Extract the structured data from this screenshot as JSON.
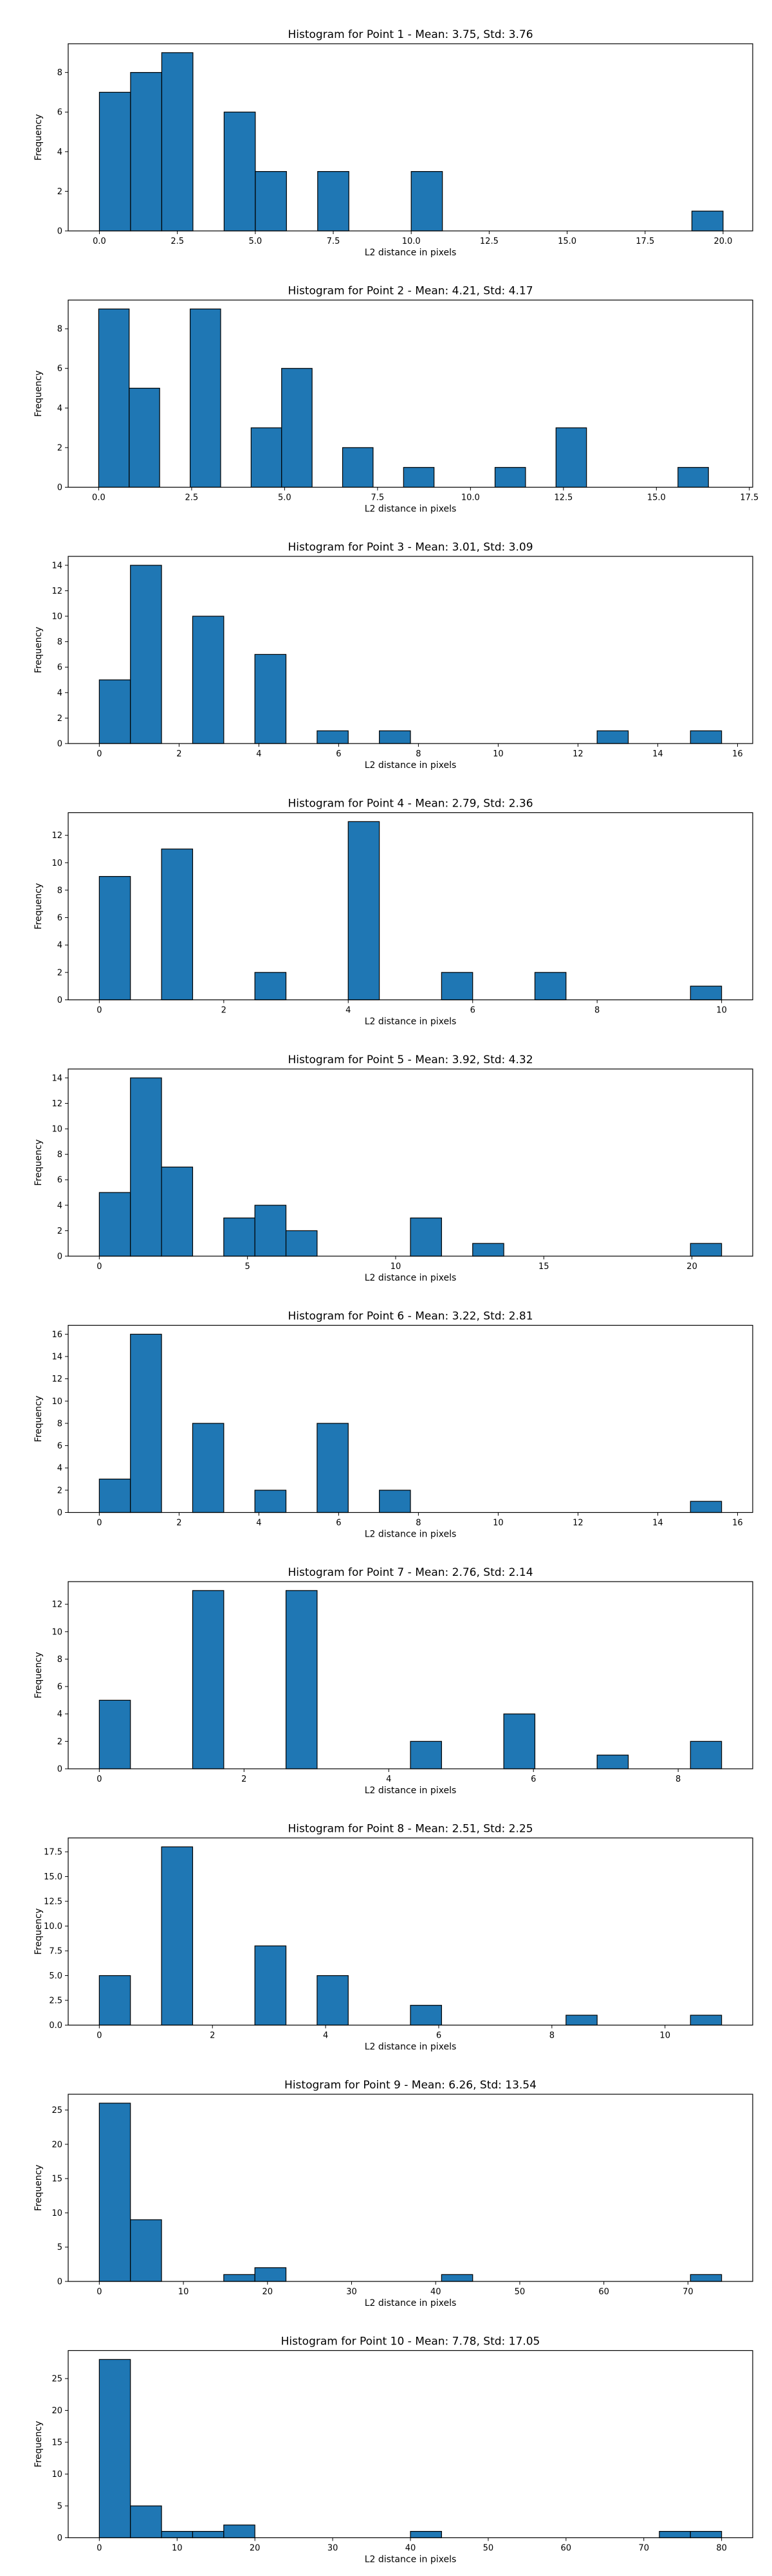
{
  "colors": {
    "bar": "#1f77b4",
    "edge": "#000000",
    "axis": "#000000",
    "background": "#ffffff"
  },
  "chart_data": [
    {
      "type": "bar",
      "title": "Histogram for Point 1 - Mean: 3.75, Std: 3.76",
      "xlabel": "L2 distance in pixels",
      "ylabel": "Frequency",
      "xlim": [
        -1.0,
        20.95
      ],
      "ylim": [
        0,
        9.45
      ],
      "xticks": [
        0.0,
        2.5,
        5.0,
        7.5,
        10.0,
        12.5,
        15.0,
        17.5,
        20.0
      ],
      "xtick_labels": [
        "0.0",
        "2.5",
        "5.0",
        "7.5",
        "10.0",
        "12.5",
        "15.0",
        "17.5",
        "20.0"
      ],
      "yticks": [
        0,
        2,
        4,
        6,
        8
      ],
      "ytick_labels": [
        "0",
        "2",
        "4",
        "6",
        "8"
      ],
      "bins": [
        [
          0.0,
          1.0,
          7
        ],
        [
          1.0,
          2.0,
          8
        ],
        [
          2.0,
          3.0,
          9
        ],
        [
          4.0,
          5.0,
          6
        ],
        [
          5.0,
          6.0,
          3
        ],
        [
          7.0,
          8.0,
          3
        ],
        [
          10.0,
          11.0,
          3
        ],
        [
          19.0,
          20.0,
          1
        ]
      ],
      "grid": false
    },
    {
      "type": "bar",
      "title": "Histogram for Point 2 - Mean: 4.21, Std: 4.17",
      "xlabel": "L2 distance in pixels",
      "ylabel": "Frequency",
      "xlim": [
        -0.82,
        17.59
      ],
      "ylim": [
        0,
        9.45
      ],
      "xticks": [
        0.0,
        2.5,
        5.0,
        7.5,
        10.0,
        12.5,
        15.0,
        17.5
      ],
      "xtick_labels": [
        "0.0",
        "2.5",
        "5.0",
        "7.5",
        "10.0",
        "12.5",
        "15.0",
        "17.5"
      ],
      "yticks": [
        0,
        2,
        4,
        6,
        8
      ],
      "ytick_labels": [
        "0",
        "2",
        "4",
        "6",
        "8"
      ],
      "bins": [
        [
          0.0,
          0.82,
          9
        ],
        [
          0.82,
          1.64,
          5
        ],
        [
          2.46,
          3.28,
          9
        ],
        [
          4.1,
          4.92,
          3
        ],
        [
          4.92,
          5.74,
          6
        ],
        [
          6.56,
          7.38,
          2
        ],
        [
          8.2,
          9.02,
          1
        ],
        [
          10.66,
          11.48,
          1
        ],
        [
          12.3,
          13.12,
          3
        ],
        [
          15.58,
          16.4,
          1
        ]
      ],
      "grid": false
    },
    {
      "type": "bar",
      "title": "Histogram for Point 3 - Mean: 3.01, Std: 3.09",
      "xlabel": "L2 distance in pixels",
      "ylabel": "Frequency",
      "xlim": [
        -0.78,
        16.38
      ],
      "ylim": [
        0,
        14.7
      ],
      "xticks": [
        0,
        2,
        4,
        6,
        8,
        10,
        12,
        14,
        16
      ],
      "xtick_labels": [
        "0",
        "2",
        "4",
        "6",
        "8",
        "10",
        "12",
        "14",
        "16"
      ],
      "yticks": [
        0,
        2,
        4,
        6,
        8,
        10,
        12,
        14
      ],
      "ytick_labels": [
        "0",
        "2",
        "4",
        "6",
        "8",
        "10",
        "12",
        "14"
      ],
      "bins": [
        [
          0.0,
          0.78,
          5
        ],
        [
          0.78,
          1.56,
          14
        ],
        [
          2.34,
          3.12,
          10
        ],
        [
          3.9,
          4.68,
          7
        ],
        [
          5.46,
          6.24,
          1
        ],
        [
          7.02,
          7.8,
          1
        ],
        [
          12.48,
          13.26,
          1
        ],
        [
          14.82,
          15.6,
          1
        ]
      ],
      "grid": false
    },
    {
      "type": "bar",
      "title": "Histogram for Point 4 - Mean: 2.79, Std: 2.36",
      "xlabel": "L2 distance in pixels",
      "ylabel": "Frequency",
      "xlim": [
        -0.5,
        10.5
      ],
      "ylim": [
        0,
        13.65
      ],
      "xticks": [
        0,
        2,
        4,
        6,
        8,
        10
      ],
      "xtick_labels": [
        "0",
        "2",
        "4",
        "6",
        "8",
        "10"
      ],
      "yticks": [
        0,
        2,
        4,
        6,
        8,
        10,
        12
      ],
      "ytick_labels": [
        "0",
        "2",
        "4",
        "6",
        "8",
        "10",
        "12"
      ],
      "bins": [
        [
          0.0,
          0.5,
          9
        ],
        [
          1.0,
          1.5,
          11
        ],
        [
          2.5,
          3.0,
          2
        ],
        [
          4.0,
          4.5,
          13
        ],
        [
          5.5,
          6.0,
          2
        ],
        [
          7.0,
          7.5,
          2
        ],
        [
          9.5,
          10.0,
          1
        ]
      ],
      "grid": false
    },
    {
      "type": "bar",
      "title": "Histogram for Point 5 - Mean: 3.92, Std: 4.32",
      "xlabel": "L2 distance in pixels",
      "ylabel": "Frequency",
      "xlim": [
        -1.05,
        22.05
      ],
      "ylim": [
        0,
        14.7
      ],
      "xticks": [
        0,
        5,
        10,
        15,
        20
      ],
      "xtick_labels": [
        "0",
        "5",
        "10",
        "15",
        "20"
      ],
      "yticks": [
        0,
        2,
        4,
        6,
        8,
        10,
        12,
        14
      ],
      "ytick_labels": [
        "0",
        "2",
        "4",
        "6",
        "8",
        "10",
        "12",
        "14"
      ],
      "bins": [
        [
          0.0,
          1.05,
          5
        ],
        [
          1.05,
          2.1,
          14
        ],
        [
          2.1,
          3.15,
          7
        ],
        [
          4.2,
          5.25,
          3
        ],
        [
          5.25,
          6.3,
          4
        ],
        [
          6.3,
          7.35,
          2
        ],
        [
          10.5,
          11.55,
          3
        ],
        [
          12.6,
          13.65,
          1
        ],
        [
          19.95,
          21.0,
          1
        ]
      ],
      "grid": false
    },
    {
      "type": "bar",
      "title": "Histogram for Point 6 - Mean: 3.22, Std: 2.81",
      "xlabel": "L2 distance in pixels",
      "ylabel": "Frequency",
      "xlim": [
        -0.78,
        16.38
      ],
      "ylim": [
        0,
        16.8
      ],
      "xticks": [
        0,
        2,
        4,
        6,
        8,
        10,
        12,
        14,
        16
      ],
      "xtick_labels": [
        "0",
        "2",
        "4",
        "6",
        "8",
        "10",
        "12",
        "14",
        "16"
      ],
      "yticks": [
        0,
        2,
        4,
        6,
        8,
        10,
        12,
        14,
        16
      ],
      "ytick_labels": [
        "0",
        "2",
        "4",
        "6",
        "8",
        "10",
        "12",
        "14",
        "16"
      ],
      "bins": [
        [
          0.0,
          0.78,
          3
        ],
        [
          0.78,
          1.56,
          16
        ],
        [
          2.34,
          3.12,
          8
        ],
        [
          3.9,
          4.68,
          2
        ],
        [
          5.46,
          6.24,
          8
        ],
        [
          7.02,
          7.8,
          2
        ],
        [
          14.82,
          15.6,
          1
        ]
      ],
      "grid": false
    },
    {
      "type": "bar",
      "title": "Histogram for Point 7 - Mean: 2.76, Std: 2.14",
      "xlabel": "L2 distance in pixels",
      "ylabel": "Frequency",
      "xlim": [
        -0.43,
        9.03
      ],
      "ylim": [
        0,
        13.65
      ],
      "xticks": [
        0,
        2,
        4,
        6,
        8
      ],
      "xtick_labels": [
        "0",
        "2",
        "4",
        "6",
        "8"
      ],
      "yticks": [
        0,
        2,
        4,
        6,
        8,
        10,
        12
      ],
      "ytick_labels": [
        "0",
        "2",
        "4",
        "6",
        "8",
        "10",
        "12"
      ],
      "bins": [
        [
          0.0,
          0.43,
          5
        ],
        [
          1.29,
          1.72,
          13
        ],
        [
          2.58,
          3.01,
          13
        ],
        [
          4.3,
          4.73,
          2
        ],
        [
          5.59,
          6.02,
          4
        ],
        [
          6.88,
          7.31,
          1
        ],
        [
          8.17,
          8.6,
          2
        ]
      ],
      "grid": false
    },
    {
      "type": "bar",
      "title": "Histogram for Point 8 - Mean: 2.51, Std: 2.25",
      "xlabel": "L2 distance in pixels",
      "ylabel": "Frequency",
      "xlim": [
        -0.55,
        11.55
      ],
      "ylim": [
        0,
        18.9
      ],
      "xticks": [
        0,
        2,
        4,
        6,
        8,
        10
      ],
      "xtick_labels": [
        "0",
        "2",
        "4",
        "6",
        "8",
        "10"
      ],
      "yticks": [
        0,
        2.5,
        5,
        7.5,
        10,
        12.5,
        15,
        17.5
      ],
      "ytick_labels": [
        "0.0",
        "2.5",
        "5.0",
        "7.5",
        "10.0",
        "12.5",
        "15.0",
        "17.5"
      ],
      "bins": [
        [
          0.0,
          0.55,
          5
        ],
        [
          1.1,
          1.65,
          18
        ],
        [
          2.75,
          3.3,
          8
        ],
        [
          3.85,
          4.4,
          5
        ],
        [
          5.5,
          6.05,
          2
        ],
        [
          8.25,
          8.8,
          1
        ],
        [
          10.45,
          11.0,
          1
        ]
      ],
      "grid": false
    },
    {
      "type": "bar",
      "title": "Histogram for Point 9 - Mean: 6.26, Std: 13.54",
      "xlabel": "L2 distance in pixels",
      "ylabel": "Frequency",
      "xlim": [
        -3.7,
        77.7
      ],
      "ylim": [
        0,
        27.3
      ],
      "xticks": [
        0,
        10,
        20,
        30,
        40,
        50,
        60,
        70
      ],
      "xtick_labels": [
        "0",
        "10",
        "20",
        "30",
        "40",
        "50",
        "60",
        "70"
      ],
      "yticks": [
        0,
        5,
        10,
        15,
        20,
        25
      ],
      "ytick_labels": [
        "0",
        "5",
        "10",
        "15",
        "20",
        "25"
      ],
      "bins": [
        [
          0.0,
          3.7,
          26
        ],
        [
          3.7,
          7.4,
          9
        ],
        [
          14.8,
          18.5,
          1
        ],
        [
          18.5,
          22.2,
          2
        ],
        [
          40.7,
          44.4,
          1
        ],
        [
          70.3,
          74.0,
          1
        ]
      ],
      "grid": false
    },
    {
      "type": "bar",
      "title": "Histogram for Point 10 - Mean: 7.78, Std: 17.05",
      "xlabel": "L2 distance in pixels",
      "ylabel": "Frequency",
      "xlim": [
        -4.0,
        84.0
      ],
      "ylim": [
        0,
        29.4
      ],
      "xticks": [
        0,
        10,
        20,
        30,
        40,
        50,
        60,
        70,
        80
      ],
      "xtick_labels": [
        "0",
        "10",
        "20",
        "30",
        "40",
        "50",
        "60",
        "70",
        "80"
      ],
      "yticks": [
        0,
        5,
        10,
        15,
        20,
        25
      ],
      "ytick_labels": [
        "0",
        "5",
        "10",
        "15",
        "20",
        "25"
      ],
      "bins": [
        [
          0.0,
          4.0,
          28
        ],
        [
          4.0,
          8.0,
          5
        ],
        [
          8.0,
          12.0,
          1
        ],
        [
          12.0,
          16.0,
          1
        ],
        [
          16.0,
          20.0,
          2
        ],
        [
          40.0,
          44.0,
          1
        ],
        [
          72.0,
          76.0,
          1
        ],
        [
          76.0,
          80.0,
          1
        ]
      ],
      "grid": false
    }
  ]
}
